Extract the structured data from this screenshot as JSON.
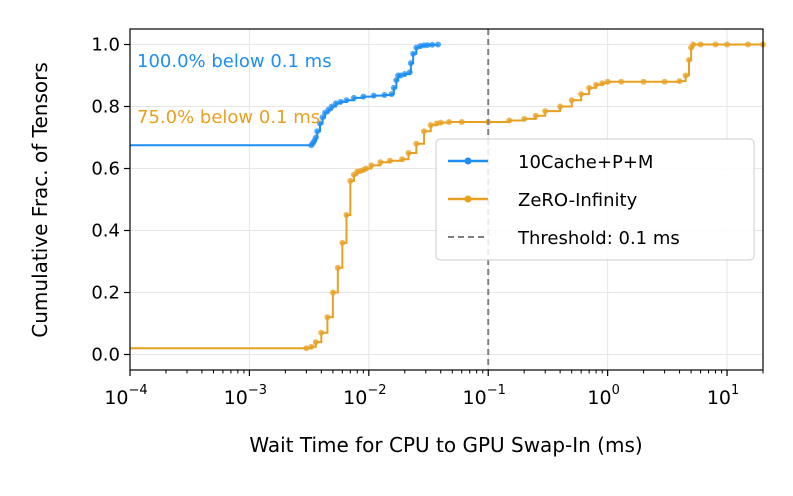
{
  "chart_data": {
    "type": "line",
    "xscale": "log",
    "xlabel": "Wait Time for CPU to GPU Swap-In (ms)",
    "ylabel": "Cumulative Frac. of Tensors",
    "xlim": [
      0.0001,
      20
    ],
    "ylim": [
      -0.05,
      1.05
    ],
    "grid": true,
    "x_ticks": [
      {
        "value": 0.0001,
        "base": "10",
        "exp": "−4"
      },
      {
        "value": 0.001,
        "base": "10",
        "exp": "−3"
      },
      {
        "value": 0.01,
        "base": "10",
        "exp": "−2"
      },
      {
        "value": 0.1,
        "base": "10",
        "exp": "−1"
      },
      {
        "value": 1,
        "base": "10",
        "exp": "0"
      },
      {
        "value": 10,
        "base": "10",
        "exp": "1"
      }
    ],
    "y_ticks": [
      {
        "value": 0.0,
        "label": "0.0"
      },
      {
        "value": 0.2,
        "label": "0.2"
      },
      {
        "value": 0.4,
        "label": "0.4"
      },
      {
        "value": 0.6,
        "label": "0.6"
      },
      {
        "value": 0.8,
        "label": "0.8"
      },
      {
        "value": 1.0,
        "label": "1.0"
      }
    ],
    "series": [
      {
        "name": "10Cache+P+M",
        "color": "#1f8ef1",
        "x": [
          0.0001,
          0.0033,
          0.0034,
          0.0035,
          0.0036,
          0.0037,
          0.0039,
          0.0041,
          0.0043,
          0.0046,
          0.0049,
          0.0053,
          0.0058,
          0.0065,
          0.0075,
          0.009,
          0.011,
          0.0135,
          0.0155,
          0.0162,
          0.017,
          0.0176,
          0.0185,
          0.02,
          0.022,
          0.0225,
          0.0235,
          0.025,
          0.027,
          0.029,
          0.031,
          0.034,
          0.038
        ],
        "y": [
          0.675,
          0.675,
          0.682,
          0.69,
          0.7,
          0.72,
          0.745,
          0.765,
          0.78,
          0.79,
          0.8,
          0.81,
          0.815,
          0.82,
          0.828,
          0.832,
          0.835,
          0.837,
          0.84,
          0.86,
          0.885,
          0.9,
          0.9,
          0.905,
          0.91,
          0.94,
          0.97,
          0.99,
          0.995,
          0.997,
          0.998,
          0.999,
          1.0
        ]
      },
      {
        "name": "ZeRO-Infinity",
        "color": "#e8a021",
        "x": [
          0.0001,
          0.003,
          0.0033,
          0.0036,
          0.004,
          0.0045,
          0.005,
          0.0055,
          0.006,
          0.0065,
          0.007,
          0.0075,
          0.008,
          0.0085,
          0.009,
          0.0095,
          0.0105,
          0.0125,
          0.015,
          0.019,
          0.0215,
          0.025,
          0.029,
          0.033,
          0.037,
          0.04,
          0.047,
          0.06,
          0.1,
          0.15,
          0.2,
          0.25,
          0.3,
          0.4,
          0.5,
          0.6,
          0.7,
          0.8,
          0.9,
          1.0,
          1.3,
          2.0,
          3.0,
          4.0,
          4.5,
          4.8,
          5.0,
          5.2,
          6.0,
          8.0,
          10.0,
          15.0,
          20.0
        ],
        "y": [
          0.02,
          0.02,
          0.025,
          0.04,
          0.07,
          0.12,
          0.2,
          0.28,
          0.36,
          0.45,
          0.56,
          0.58,
          0.59,
          0.592,
          0.595,
          0.6,
          0.61,
          0.62,
          0.625,
          0.63,
          0.65,
          0.68,
          0.72,
          0.74,
          0.745,
          0.748,
          0.75,
          0.75,
          0.75,
          0.755,
          0.76,
          0.77,
          0.785,
          0.8,
          0.82,
          0.84,
          0.86,
          0.87,
          0.875,
          0.88,
          0.88,
          0.88,
          0.88,
          0.882,
          0.9,
          0.95,
          0.99,
          1.0,
          1.0,
          1.0,
          1.0,
          1.0,
          1.0
        ]
      }
    ],
    "threshold": {
      "x": 0.1,
      "label": "Threshold: 0.1 ms",
      "color": "#808080"
    },
    "annotations": [
      {
        "text": "100.0% below 0.1 ms",
        "color": "#1f8ef1"
      },
      {
        "text": "75.0% below 0.1 ms",
        "color": "#e8a021"
      }
    ],
    "legend": {
      "placement": "center-right",
      "entries": [
        "10Cache+P+M",
        "ZeRO-Infinity",
        "Threshold: 0.1 ms"
      ]
    }
  }
}
